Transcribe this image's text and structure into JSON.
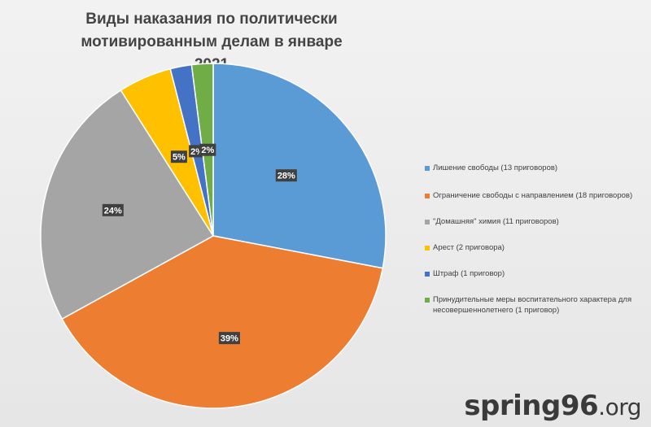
{
  "chart_data": {
    "type": "pie",
    "title_line1": "Виды наказания по политически мотивированным делам в январе",
    "title_line2": "2021",
    "slices": [
      {
        "label": "Лишение свободы (13 приговоров)",
        "value": 28,
        "display": "28%",
        "color": "#5b9bd5"
      },
      {
        "label": "Ограничение свободы с направлением (18 приговоров)",
        "value": 39,
        "display": "39%",
        "color": "#ed7d31"
      },
      {
        "label": "\"Домашняя\" химия (11 приговоров)",
        "value": 24,
        "display": "24%",
        "color": "#a5a5a5"
      },
      {
        "label": "Арест (2 приговора)",
        "value": 5,
        "display": "5%",
        "color": "#ffc000"
      },
      {
        "label": "Штраф (1 приговор)",
        "value": 2,
        "display": "2%",
        "color": "#4472c4"
      },
      {
        "label": "Принудительные меры воспитательного характера для несовершеннолетнего (1 приговор)",
        "value": 2,
        "display": "2%",
        "color": "#70ad47"
      }
    ],
    "legend_position": "right"
  },
  "watermark": {
    "main": "spring96",
    "suffix": ".org"
  }
}
